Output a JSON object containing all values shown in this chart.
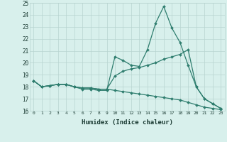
{
  "title": "",
  "xlabel": "Humidex (Indice chaleur)",
  "x": [
    0,
    1,
    2,
    3,
    4,
    5,
    6,
    7,
    8,
    9,
    10,
    11,
    12,
    13,
    14,
    15,
    16,
    17,
    18,
    19,
    20,
    21,
    22,
    23
  ],
  "line1": [
    18.5,
    18.0,
    18.1,
    18.2,
    18.2,
    18.0,
    17.8,
    17.8,
    17.7,
    17.7,
    20.5,
    20.2,
    19.8,
    19.7,
    21.1,
    23.3,
    24.7,
    22.9,
    21.7,
    19.8,
    18.0,
    17.0,
    16.6,
    16.2
  ],
  "line2": [
    18.5,
    18.0,
    18.1,
    18.2,
    18.2,
    18.0,
    17.9,
    17.9,
    17.8,
    17.8,
    18.9,
    19.3,
    19.5,
    19.6,
    19.8,
    20.0,
    20.3,
    20.5,
    20.7,
    21.1,
    18.0,
    17.0,
    16.6,
    16.2
  ],
  "line3": [
    18.5,
    18.0,
    18.1,
    18.2,
    18.2,
    18.0,
    17.9,
    17.9,
    17.8,
    17.8,
    17.7,
    17.6,
    17.5,
    17.4,
    17.3,
    17.2,
    17.1,
    17.0,
    16.9,
    16.7,
    16.5,
    16.3,
    16.2,
    16.1
  ],
  "line_color": "#2e7d6e",
  "bg_color": "#d8f0ec",
  "grid_color": "#b8d4d0",
  "ylim": [
    16,
    25
  ],
  "yticks": [
    16,
    17,
    18,
    19,
    20,
    21,
    22,
    23,
    24,
    25
  ],
  "marker": "D",
  "markersize": 2.0,
  "linewidth": 0.9
}
